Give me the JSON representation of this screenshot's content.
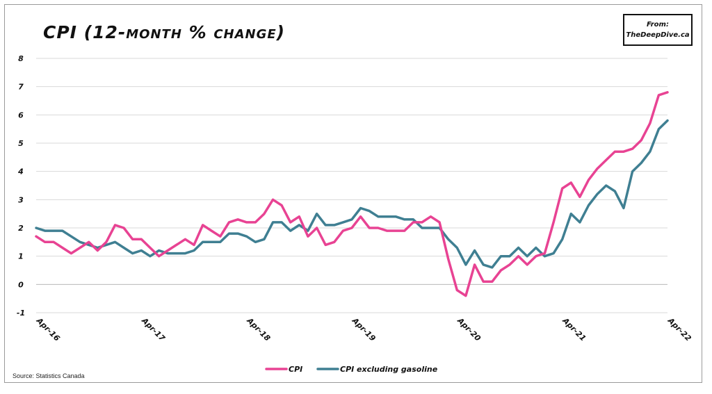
{
  "title": "CPI (12-month % change)",
  "source_box": {
    "line1": "From:",
    "line2": "TheDeepDive.ca"
  },
  "footnote": "Source: Statistics Canada",
  "colors": {
    "cpi": "#e84393",
    "cpi_ex_gas": "#3f7f92",
    "grid": "#d9d9d9"
  },
  "chart_data": {
    "type": "line",
    "title": "CPI (12-month % change)",
    "xlabel": "",
    "ylabel": "",
    "ylim": [
      -1,
      8
    ],
    "yticks": [
      -1,
      0,
      1,
      2,
      3,
      4,
      5,
      6,
      7,
      8
    ],
    "xticks": [
      "Apr-16",
      "Apr-17",
      "Apr-18",
      "Apr-19",
      "Apr-20",
      "Apr-21",
      "Apr-22"
    ],
    "x": [
      "Apr-16",
      "May-16",
      "Jun-16",
      "Jul-16",
      "Aug-16",
      "Sep-16",
      "Oct-16",
      "Nov-16",
      "Dec-16",
      "Jan-17",
      "Feb-17",
      "Mar-17",
      "Apr-17",
      "May-17",
      "Jun-17",
      "Jul-17",
      "Aug-17",
      "Sep-17",
      "Oct-17",
      "Nov-17",
      "Dec-17",
      "Jan-18",
      "Feb-18",
      "Mar-18",
      "Apr-18",
      "May-18",
      "Jun-18",
      "Jul-18",
      "Aug-18",
      "Sep-18",
      "Oct-18",
      "Nov-18",
      "Dec-18",
      "Jan-19",
      "Feb-19",
      "Mar-19",
      "Apr-19",
      "May-19",
      "Jun-19",
      "Jul-19",
      "Aug-19",
      "Sep-19",
      "Oct-19",
      "Nov-19",
      "Dec-19",
      "Jan-20",
      "Feb-20",
      "Mar-20",
      "Apr-20",
      "May-20",
      "Jun-20",
      "Jul-20",
      "Aug-20",
      "Sep-20",
      "Oct-20",
      "Nov-20",
      "Dec-20",
      "Jan-21",
      "Feb-21",
      "Mar-21",
      "Apr-21",
      "May-21",
      "Jun-21",
      "Jul-21",
      "Aug-21",
      "Sep-21",
      "Oct-21",
      "Nov-21",
      "Dec-21",
      "Jan-22",
      "Feb-22",
      "Mar-22",
      "Apr-22"
    ],
    "series": [
      {
        "name": "CPI",
        "values": [
          1.7,
          1.5,
          1.5,
          1.3,
          1.1,
          1.3,
          1.5,
          1.2,
          1.5,
          2.1,
          2.0,
          1.6,
          1.6,
          1.3,
          1.0,
          1.2,
          1.4,
          1.6,
          1.4,
          2.1,
          1.9,
          1.7,
          2.2,
          2.3,
          2.2,
          2.2,
          2.5,
          3.0,
          2.8,
          2.2,
          2.4,
          1.7,
          2.0,
          1.4,
          1.5,
          1.9,
          2.0,
          2.4,
          2.0,
          2.0,
          1.9,
          1.9,
          1.9,
          2.2,
          2.2,
          2.4,
          2.2,
          0.9,
          -0.2,
          -0.4,
          0.7,
          0.1,
          0.1,
          0.5,
          0.7,
          1.0,
          0.7,
          1.0,
          1.1,
          2.2,
          3.4,
          3.6,
          3.1,
          3.7,
          4.1,
          4.4,
          4.7,
          4.7,
          4.8,
          5.1,
          5.7,
          6.7,
          6.8
        ]
      },
      {
        "name": "CPI excluding gasoline",
        "values": [
          2.0,
          1.9,
          1.9,
          1.9,
          1.7,
          1.5,
          1.4,
          1.3,
          1.4,
          1.5,
          1.3,
          1.1,
          1.2,
          1.0,
          1.2,
          1.1,
          1.1,
          1.1,
          1.2,
          1.5,
          1.5,
          1.5,
          1.8,
          1.8,
          1.7,
          1.5,
          1.6,
          2.2,
          2.2,
          1.9,
          2.1,
          1.9,
          2.5,
          2.1,
          2.1,
          2.2,
          2.3,
          2.7,
          2.6,
          2.4,
          2.4,
          2.4,
          2.3,
          2.3,
          2.0,
          2.0,
          2.0,
          1.6,
          1.3,
          0.7,
          1.2,
          0.7,
          0.6,
          1.0,
          1.0,
          1.3,
          1.0,
          1.3,
          1.0,
          1.1,
          1.6,
          2.5,
          2.2,
          2.8,
          3.2,
          3.5,
          3.3,
          2.7,
          4.0,
          4.3,
          4.7,
          5.5,
          5.8
        ]
      }
    ],
    "legend": {
      "position": "bottom",
      "entries": [
        "CPI",
        "CPI excluding gasoline"
      ]
    },
    "grid": true
  }
}
